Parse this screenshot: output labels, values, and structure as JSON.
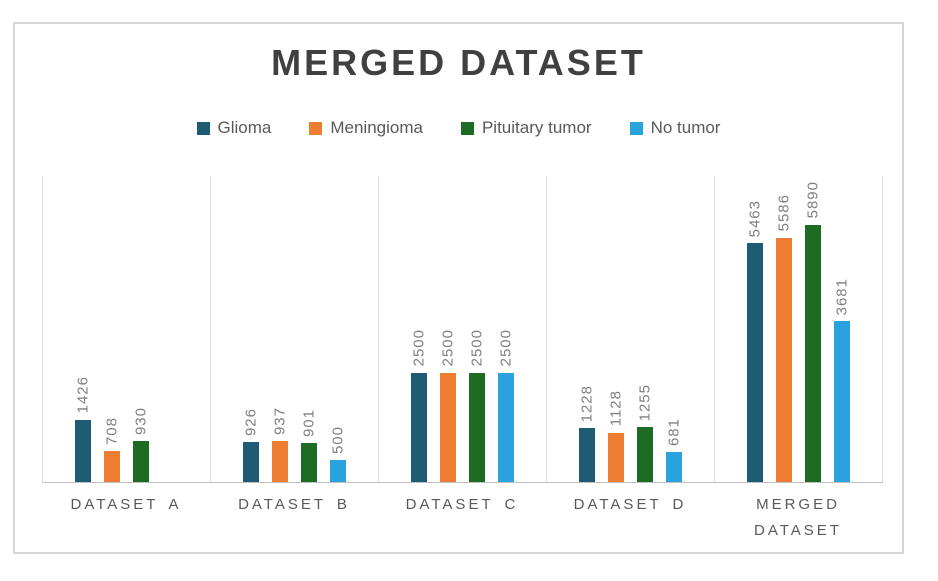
{
  "title": "MERGED DATASET",
  "chart_data": {
    "type": "bar",
    "title": "MERGED DATASET",
    "categories": [
      "DATASET A",
      "DATASET B",
      "DATASET C",
      "DATASET D",
      "MERGED DATASET"
    ],
    "series": [
      {
        "name": "Glioma",
        "color": "#1F5C73",
        "values": [
          1426,
          926,
          2500,
          1228,
          5463
        ]
      },
      {
        "name": "Meningioma",
        "color": "#ED7D31",
        "values": [
          708,
          937,
          2500,
          1128,
          5586
        ]
      },
      {
        "name": "Pituitary tumor",
        "color": "#1E6B24",
        "values": [
          930,
          901,
          2500,
          1255,
          5890
        ]
      },
      {
        "name": "No tumor",
        "color": "#29A3DD",
        "values": [
          null,
          500,
          2500,
          681,
          3681
        ]
      }
    ],
    "ylim": [
      0,
      7000
    ],
    "xlabel": "",
    "ylabel": "",
    "y_axis_labels_visible": false,
    "grid": "vertical-category-separators",
    "legend_position": "top",
    "data_labels": "rotated-90-above-bars",
    "colors": {
      "title_text": "#404040",
      "legend_text": "#595959",
      "data_label_text": "#7F7F7F",
      "category_label_text": "#595959",
      "gridline": "#DEDEDE",
      "axis_line": "#C0C0C0",
      "frame_border": "#D6D6D6",
      "background": "#FFFFFF"
    }
  }
}
